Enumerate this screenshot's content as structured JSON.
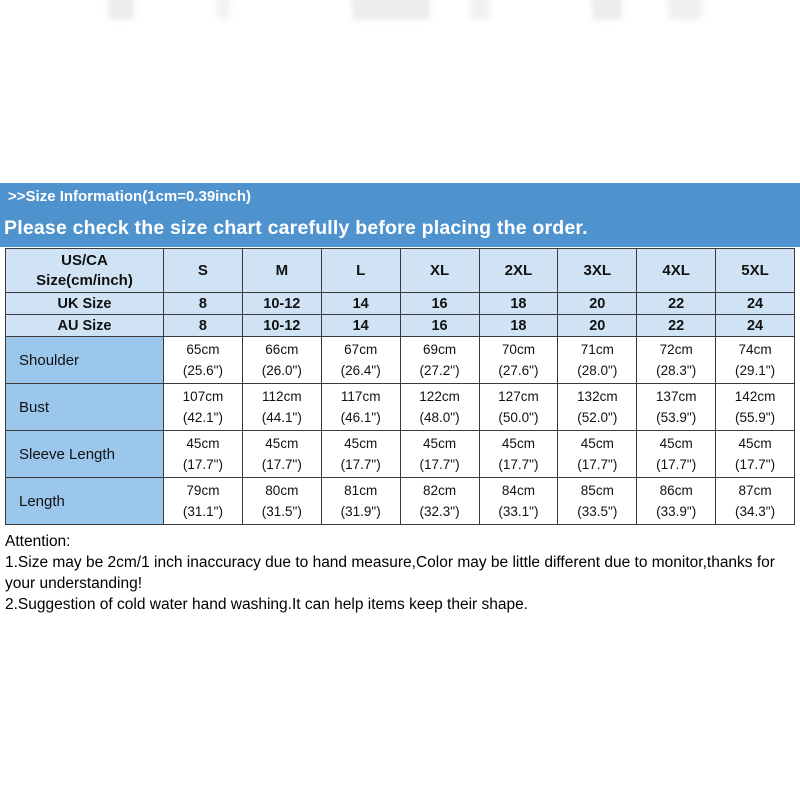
{
  "colors": {
    "header_bar": "#4f93ce",
    "table_head_bg": "#cfe3f5",
    "row_label_bg": "#9cc7ec",
    "table_border": "#3b3b3b"
  },
  "header": {
    "size_info_bar": ">>Size Information(1cm=0.39inch)",
    "notice_bar": "Please check the size chart carefully before placing the order."
  },
  "table": {
    "corner_label": "US/CA\nSize(cm/inch)",
    "columns": [
      "S",
      "M",
      "L",
      "XL",
      "2XL",
      "3XL",
      "4XL",
      "5XL"
    ],
    "size_rows": [
      {
        "label": "UK Size",
        "values": [
          "8",
          "10-12",
          "14",
          "16",
          "18",
          "20",
          "22",
          "24"
        ]
      },
      {
        "label": "AU Size",
        "values": [
          "8",
          "10-12",
          "14",
          "16",
          "18",
          "20",
          "22",
          "24"
        ]
      }
    ],
    "measure_rows": [
      {
        "label": "Shoulder",
        "values": [
          "65cm\n(25.6\")",
          "66cm\n(26.0\")",
          "67cm\n(26.4\")",
          "69cm\n(27.2\")",
          "70cm\n(27.6\")",
          "71cm\n(28.0\")",
          "72cm\n(28.3\")",
          "74cm\n(29.1\")"
        ]
      },
      {
        "label": "Bust",
        "values": [
          "107cm\n(42.1\")",
          "112cm\n(44.1\")",
          "117cm\n(46.1\")",
          "122cm\n(48.0\")",
          "127cm\n(50.0\")",
          "132cm\n(52.0\")",
          "137cm\n(53.9\")",
          "142cm\n(55.9\")"
        ]
      },
      {
        "label": "Sleeve Length",
        "values": [
          "45cm\n(17.7\")",
          "45cm\n(17.7\")",
          "45cm\n(17.7\")",
          "45cm\n(17.7\")",
          "45cm\n(17.7\")",
          "45cm\n(17.7\")",
          "45cm\n(17.7\")",
          "45cm\n(17.7\")"
        ]
      },
      {
        "label": "Length",
        "values": [
          "79cm\n(31.1\")",
          "80cm\n(31.5\")",
          "81cm\n(31.9\")",
          "82cm\n(32.3\")",
          "84cm\n(33.1\")",
          "85cm\n(33.5\")",
          "86cm\n(33.9\")",
          "87cm\n(34.3\")"
        ]
      }
    ]
  },
  "attention": {
    "title": "Attention:",
    "line1": "1.Size may be 2cm/1 inch inaccuracy due to hand measure,Color may be little different due to monitor,thanks for your understanding!",
    "line2": "2.Suggestion of cold water hand washing.It can help items keep their shape."
  }
}
